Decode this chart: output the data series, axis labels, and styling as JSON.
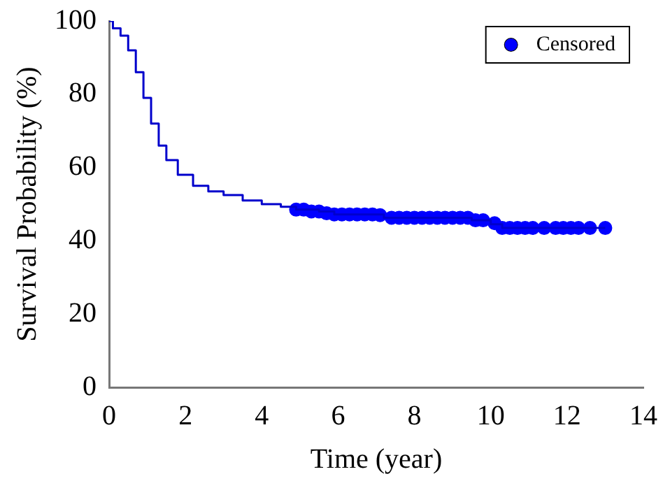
{
  "chart_data": {
    "type": "step",
    "xlabel": "Time (year)",
    "ylabel": "Survival Probability (%)",
    "xlim": [
      0,
      14
    ],
    "xticks": [
      0,
      2,
      4,
      6,
      8,
      10,
      12,
      14
    ],
    "ylim": [
      0,
      100
    ],
    "yticks": [
      0,
      20,
      40,
      60,
      80,
      100
    ],
    "grid": false,
    "legend": "top right",
    "series": [
      {
        "marker": "none",
        "color": "#0000cc",
        "x": [
          0,
          0.1,
          0.3,
          0.5,
          0.7,
          0.9,
          1.1,
          1.3,
          1.5,
          1.8,
          2.2,
          2.6,
          3,
          3.5,
          4,
          4.5,
          4.9,
          5.5,
          5.9,
          7.2,
          9.5,
          10,
          10.3,
          13
        ],
        "values": [
          100,
          98,
          96,
          92,
          86,
          79,
          72,
          66,
          62,
          58,
          55,
          53.5,
          52.5,
          51,
          50,
          49.3,
          48.5,
          48,
          47.2,
          46.3,
          45.6,
          44.5,
          43.5,
          43.5
        ]
      },
      {
        "type": "scatter",
        "marker": "circle",
        "name": "Censored",
        "color": "#0000ff",
        "x": [
          4.9,
          5.1,
          5.3,
          5.5,
          5.7,
          5.9,
          6.1,
          6.3,
          6.5,
          6.7,
          6.9,
          7.1,
          7.4,
          7.6,
          7.8,
          8,
          8.2,
          8.4,
          8.6,
          8.8,
          9,
          9.2,
          9.4,
          9.6,
          9.8,
          10.1,
          10.3,
          10.5,
          10.7,
          10.9,
          11.1,
          11.4,
          11.7,
          11.9,
          12.1,
          12.3,
          12.6,
          13
        ],
        "values": [
          48.5,
          48.5,
          48,
          48,
          47.5,
          47.2,
          47.2,
          47.2,
          47.2,
          47.2,
          47.2,
          47,
          46.3,
          46.3,
          46.3,
          46.3,
          46.3,
          46.3,
          46.3,
          46.3,
          46.3,
          46.3,
          46.3,
          45.6,
          45.6,
          44.8,
          43.5,
          43.5,
          43.5,
          43.5,
          43.5,
          43.5,
          43.5,
          43.5,
          43.5,
          43.5,
          43.5,
          43.5
        ]
      }
    ]
  }
}
